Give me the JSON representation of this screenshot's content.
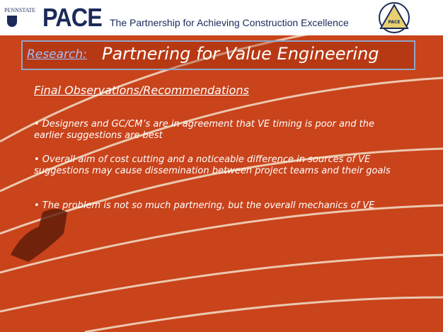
{
  "header": {
    "logo_text": "PENNSTATE",
    "brand": "PACE",
    "tagline": "The Partnership for Achieving Construction Excellence",
    "emblem": "PACE"
  },
  "title": {
    "label": "Research:",
    "text": "Partnering for Value Engineering"
  },
  "section": {
    "heading": "Final Observations/Recommendations",
    "bullets": [
      "• Designers and GC/CM’s are in agreement that VE timing is poor and the earlier suggestions are best",
      "• Overall aim of cost cutting and a noticeable difference in sources of VE suggestions may cause dissemination between project teams and their goals",
      "• The problem is not so much partnering, but the overall mechanics of VE"
    ]
  }
}
